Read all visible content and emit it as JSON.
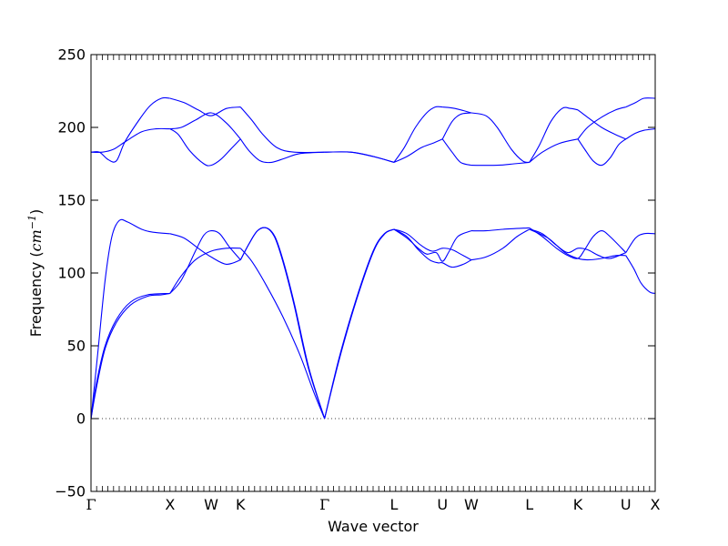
{
  "chart_data": {
    "type": "line",
    "xlabel": "Wave vector",
    "ylabel": "Frequency",
    "ylabel_unit_open": "(",
    "ylabel_unit_base": "cm",
    "ylabel_unit_exp": "−1",
    "ylabel_unit_close": ")",
    "ylim": [
      -50,
      250
    ],
    "yticks": [
      -50,
      0,
      50,
      100,
      150,
      200,
      250
    ],
    "xlim": [
      0,
      1.0
    ],
    "grid": false,
    "zero_line": {
      "y": 0,
      "style": "dotted"
    },
    "line_color": "#0000ff",
    "high_symmetry_points": [
      {
        "label": "Γ",
        "x": 0.0,
        "serif": true
      },
      {
        "label": "X",
        "x": 0.14
      },
      {
        "label": "W",
        "x": 0.213
      },
      {
        "label": "K",
        "x": 0.265
      },
      {
        "label": "Γ",
        "x": 0.414,
        "serif": true
      },
      {
        "label": "L",
        "x": 0.537
      },
      {
        "label": "U",
        "x": 0.623
      },
      {
        "label": "W",
        "x": 0.674
      },
      {
        "label": "L",
        "x": 0.777
      },
      {
        "label": "K",
        "x": 0.863
      },
      {
        "label": "U",
        "x": 0.948
      },
      {
        "label": "X",
        "x": 1.0
      }
    ],
    "series": [
      {
        "values": [
          [
            0,
            0
          ],
          [
            0.01,
            22
          ],
          [
            0.025,
            48
          ],
          [
            0.045,
            66
          ],
          [
            0.07,
            78
          ],
          [
            0.1,
            84
          ],
          [
            0.125,
            85
          ],
          [
            0.14,
            86
          ]
        ]
      },
      {
        "values": [
          [
            0,
            0
          ],
          [
            0.01,
            25
          ],
          [
            0.025,
            50
          ],
          [
            0.045,
            68
          ],
          [
            0.07,
            80
          ],
          [
            0.1,
            85
          ],
          [
            0.14,
            86
          ]
        ]
      },
      {
        "values": [
          [
            0,
            0
          ],
          [
            0.012,
            45
          ],
          [
            0.025,
            95
          ],
          [
            0.037,
            125
          ],
          [
            0.05,
            136
          ],
          [
            0.065,
            135
          ],
          [
            0.09,
            130
          ],
          [
            0.11,
            128
          ],
          [
            0.14,
            127
          ]
        ]
      },
      {
        "values": [
          [
            0.14,
            86
          ],
          [
            0.16,
            98
          ],
          [
            0.185,
            109
          ],
          [
            0.213,
            115
          ],
          [
            0.24,
            117
          ],
          [
            0.265,
            117
          ]
        ]
      },
      {
        "values": [
          [
            0.14,
            86
          ],
          [
            0.16,
            95
          ],
          [
            0.185,
            115
          ],
          [
            0.2,
            126
          ],
          [
            0.213,
            129
          ],
          [
            0.228,
            127
          ],
          [
            0.245,
            118
          ],
          [
            0.265,
            109
          ]
        ]
      },
      {
        "values": [
          [
            0.14,
            127
          ],
          [
            0.165,
            124
          ],
          [
            0.19,
            117
          ],
          [
            0.213,
            111
          ],
          [
            0.24,
            106
          ],
          [
            0.265,
            109
          ]
        ]
      },
      {
        "values": [
          [
            0.265,
            117
          ],
          [
            0.285,
            108
          ],
          [
            0.31,
            92
          ],
          [
            0.34,
            70
          ],
          [
            0.37,
            44
          ],
          [
            0.395,
            18
          ],
          [
            0.414,
            0
          ]
        ]
      },
      {
        "values": [
          [
            0.265,
            109
          ],
          [
            0.28,
            120
          ],
          [
            0.295,
            129
          ],
          [
            0.31,
            131
          ],
          [
            0.325,
            125
          ],
          [
            0.34,
            108
          ],
          [
            0.36,
            78
          ],
          [
            0.385,
            35
          ],
          [
            0.414,
            0
          ]
        ]
      },
      {
        "values": [
          [
            0.265,
            109
          ],
          [
            0.28,
            120
          ],
          [
            0.295,
            129
          ],
          [
            0.311,
            131
          ],
          [
            0.326,
            125
          ],
          [
            0.341,
            108
          ],
          [
            0.361,
            78
          ],
          [
            0.386,
            35
          ],
          [
            0.414,
            0
          ]
        ]
      },
      {
        "values": [
          [
            0.414,
            0
          ],
          [
            0.44,
            42
          ],
          [
            0.47,
            82
          ],
          [
            0.5,
            115
          ],
          [
            0.52,
            127
          ],
          [
            0.537,
            130
          ]
        ]
      },
      {
        "values": [
          [
            0.414,
            0
          ],
          [
            0.441,
            42
          ],
          [
            0.471,
            82
          ],
          [
            0.501,
            115
          ],
          [
            0.521,
            127
          ],
          [
            0.537,
            130
          ]
        ]
      },
      {
        "values": [
          [
            0.537,
            130
          ],
          [
            0.56,
            127
          ],
          [
            0.585,
            119
          ],
          [
            0.605,
            115
          ],
          [
            0.623,
            117
          ],
          [
            0.64,
            116
          ],
          [
            0.655,
            113
          ],
          [
            0.674,
            109
          ]
        ]
      },
      {
        "values": [
          [
            0.537,
            130
          ],
          [
            0.56,
            125
          ],
          [
            0.58,
            116
          ],
          [
            0.6,
            109
          ],
          [
            0.615,
            107
          ],
          [
            0.623,
            107
          ],
          [
            0.64,
            104
          ],
          [
            0.66,
            106
          ],
          [
            0.674,
            109
          ]
        ]
      },
      {
        "values": [
          [
            0.537,
            130
          ],
          [
            0.56,
            124
          ],
          [
            0.58,
            117
          ],
          [
            0.595,
            113
          ],
          [
            0.612,
            114
          ],
          [
            0.623,
            108
          ],
          [
            0.635,
            115
          ],
          [
            0.65,
            125
          ],
          [
            0.674,
            129
          ]
        ]
      },
      {
        "values": [
          [
            0.674,
            109
          ],
          [
            0.7,
            111
          ],
          [
            0.73,
            117
          ],
          [
            0.755,
            125
          ],
          [
            0.777,
            130
          ]
        ]
      },
      {
        "values": [
          [
            0.674,
            129
          ],
          [
            0.7,
            129
          ],
          [
            0.73,
            130
          ],
          [
            0.777,
            131
          ]
        ]
      },
      {
        "values": [
          [
            0.777,
            130
          ],
          [
            0.8,
            127
          ],
          [
            0.825,
            119
          ],
          [
            0.845,
            114
          ],
          [
            0.863,
            117
          ],
          [
            0.88,
            116
          ],
          [
            0.9,
            112
          ],
          [
            0.92,
            110
          ],
          [
            0.948,
            114
          ]
        ]
      },
      {
        "values": [
          [
            0.777,
            131
          ],
          [
            0.8,
            125
          ],
          [
            0.825,
            117
          ],
          [
            0.845,
            112
          ],
          [
            0.863,
            110
          ],
          [
            0.875,
            116
          ],
          [
            0.89,
            125
          ],
          [
            0.905,
            129
          ],
          [
            0.92,
            125
          ],
          [
            0.948,
            114
          ]
        ]
      },
      {
        "values": [
          [
            0.777,
            130
          ],
          [
            0.81,
            124
          ],
          [
            0.84,
            114
          ],
          [
            0.863,
            110
          ],
          [
            0.88,
            109
          ],
          [
            0.905,
            110
          ],
          [
            0.93,
            112
          ],
          [
            0.948,
            112
          ]
        ]
      },
      {
        "values": [
          [
            0.948,
            114
          ],
          [
            0.965,
            124
          ],
          [
            0.98,
            127
          ],
          [
            1.0,
            127
          ]
        ]
      },
      {
        "values": [
          [
            0.948,
            112
          ],
          [
            0.962,
            103
          ],
          [
            0.975,
            93
          ],
          [
            0.99,
            87
          ],
          [
            1.0,
            86
          ]
        ]
      },
      {
        "values": [
          [
            0,
            183
          ],
          [
            0.02,
            183
          ],
          [
            0.04,
            185
          ],
          [
            0.06,
            190
          ],
          [
            0.09,
            197
          ],
          [
            0.115,
            199
          ],
          [
            0.14,
            199
          ]
        ]
      },
      {
        "values": [
          [
            0,
            183
          ],
          [
            0.015,
            183
          ],
          [
            0.03,
            178
          ],
          [
            0.045,
            177
          ],
          [
            0.06,
            190
          ],
          [
            0.085,
            205
          ],
          [
            0.105,
            215
          ],
          [
            0.125,
            220
          ],
          [
            0.14,
            220
          ]
        ]
      },
      {
        "values": [
          [
            0.14,
            199
          ],
          [
            0.16,
            200
          ],
          [
            0.185,
            205
          ],
          [
            0.213,
            210
          ],
          [
            0.24,
            203
          ],
          [
            0.265,
            192
          ]
        ]
      },
      {
        "values": [
          [
            0.14,
            199
          ],
          [
            0.155,
            195
          ],
          [
            0.175,
            184
          ],
          [
            0.2,
            175
          ],
          [
            0.213,
            174
          ],
          [
            0.23,
            178
          ],
          [
            0.25,
            186
          ],
          [
            0.265,
            192
          ]
        ]
      },
      {
        "values": [
          [
            0.14,
            220
          ],
          [
            0.165,
            217
          ],
          [
            0.19,
            212
          ],
          [
            0.213,
            208
          ],
          [
            0.24,
            213
          ],
          [
            0.265,
            214
          ]
        ]
      },
      {
        "values": [
          [
            0.265,
            192
          ],
          [
            0.28,
            184
          ],
          [
            0.3,
            177
          ],
          [
            0.32,
            176
          ],
          [
            0.345,
            179
          ],
          [
            0.37,
            182
          ],
          [
            0.414,
            183
          ]
        ]
      },
      {
        "values": [
          [
            0.265,
            214
          ],
          [
            0.285,
            205
          ],
          [
            0.305,
            195
          ],
          [
            0.33,
            186
          ],
          [
            0.36,
            183
          ],
          [
            0.414,
            183
          ]
        ]
      },
      {
        "values": [
          [
            0.414,
            183
          ],
          [
            0.46,
            183
          ],
          [
            0.5,
            180
          ],
          [
            0.537,
            176
          ]
        ]
      },
      {
        "values": [
          [
            0.414,
            183
          ],
          [
            0.461,
            183
          ],
          [
            0.501,
            180
          ],
          [
            0.537,
            176
          ]
        ]
      },
      {
        "values": [
          [
            0.537,
            176
          ],
          [
            0.56,
            180
          ],
          [
            0.585,
            186
          ],
          [
            0.605,
            189
          ],
          [
            0.623,
            192
          ]
        ]
      },
      {
        "values": [
          [
            0.537,
            176
          ],
          [
            0.555,
            186
          ],
          [
            0.575,
            200
          ],
          [
            0.595,
            210
          ],
          [
            0.61,
            214
          ],
          [
            0.623,
            214
          ]
        ]
      },
      {
        "values": [
          [
            0.623,
            192
          ],
          [
            0.64,
            204
          ],
          [
            0.655,
            209
          ],
          [
            0.674,
            210
          ]
        ]
      },
      {
        "values": [
          [
            0.623,
            214
          ],
          [
            0.645,
            213
          ],
          [
            0.674,
            210
          ]
        ]
      },
      {
        "values": [
          [
            0.623,
            192
          ],
          [
            0.64,
            183
          ],
          [
            0.655,
            176
          ],
          [
            0.674,
            174
          ]
        ]
      },
      {
        "values": [
          [
            0.674,
            210
          ],
          [
            0.7,
            208
          ],
          [
            0.72,
            200
          ],
          [
            0.745,
            185
          ],
          [
            0.765,
            177
          ],
          [
            0.777,
            176
          ]
        ]
      },
      {
        "values": [
          [
            0.674,
            174
          ],
          [
            0.72,
            174
          ],
          [
            0.75,
            175
          ],
          [
            0.777,
            176
          ]
        ]
      },
      {
        "values": [
          [
            0.777,
            176
          ],
          [
            0.8,
            183
          ],
          [
            0.83,
            189
          ],
          [
            0.863,
            192
          ]
        ]
      },
      {
        "values": [
          [
            0.777,
            176
          ],
          [
            0.795,
            188
          ],
          [
            0.815,
            204
          ],
          [
            0.835,
            213
          ],
          [
            0.85,
            213
          ],
          [
            0.863,
            212
          ]
        ]
      },
      {
        "values": [
          [
            0.863,
            192
          ],
          [
            0.88,
            200
          ],
          [
            0.905,
            207
          ],
          [
            0.93,
            212
          ],
          [
            0.948,
            214
          ]
        ]
      },
      {
        "values": [
          [
            0.863,
            212
          ],
          [
            0.88,
            207
          ],
          [
            0.905,
            200
          ],
          [
            0.93,
            195
          ],
          [
            0.948,
            192
          ]
        ]
      },
      {
        "values": [
          [
            0.863,
            192
          ],
          [
            0.875,
            185
          ],
          [
            0.89,
            177
          ],
          [
            0.905,
            174
          ],
          [
            0.92,
            179
          ],
          [
            0.935,
            188
          ],
          [
            0.948,
            192
          ]
        ]
      },
      {
        "values": [
          [
            0.948,
            214
          ],
          [
            0.965,
            217
          ],
          [
            0.98,
            220
          ],
          [
            1.0,
            220
          ]
        ]
      },
      {
        "values": [
          [
            0.948,
            192
          ],
          [
            0.965,
            196
          ],
          [
            0.98,
            198
          ],
          [
            1.0,
            199
          ]
        ]
      }
    ]
  }
}
